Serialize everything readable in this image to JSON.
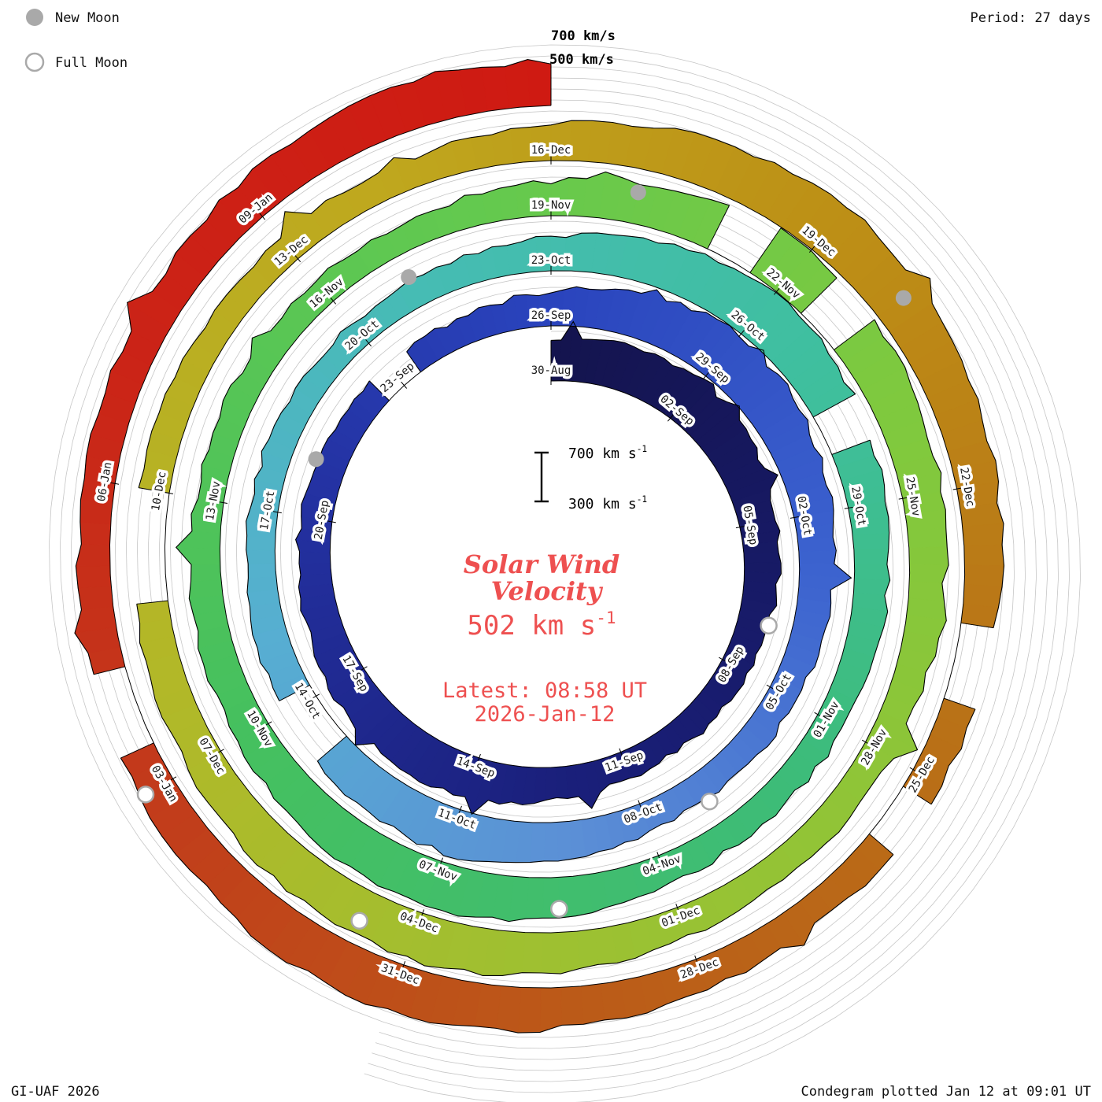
{
  "header": {
    "period_label": "Period: 27 days",
    "ring_label_outer": "700 km/s",
    "ring_label_inner": "500 km/s"
  },
  "legend": {
    "new_moon": "New Moon",
    "full_moon": "Full Moon"
  },
  "center": {
    "scale_top": "700 km s",
    "scale_top_exp": "-1",
    "scale_bottom": "300 km s",
    "scale_bottom_exp": "-1",
    "title_line1": "Solar Wind",
    "title_line2": "Velocity",
    "value": "502 km s",
    "value_exp": "-1",
    "latest_line1": "Latest: 08:58 UT",
    "latest_line2": "2026-Jan-12"
  },
  "footer": {
    "credit": "GI-UAF 2026",
    "plotted": "Condegram plotted Jan 12 at 09:01 UT"
  },
  "colors": {
    "accent_text": "#ee5050",
    "moon_gray": "#a9a9a9",
    "grid": "#c6c6c6",
    "edge": "#000000"
  },
  "chart_data": {
    "type": "area",
    "layout": "polar-spiral-condegram",
    "title": "Solar Wind Velocity",
    "period_days": 27,
    "start_label": "30-Aug",
    "end_label": "2026-Jan-12",
    "vmin": 300,
    "vmax": 700,
    "grid_levels": [
      300,
      400,
      500,
      600,
      700
    ],
    "current_value_kms": 502,
    "latest_time": "08:58 UT",
    "latest_date": "2026-Jan-12",
    "date_labels": [
      {
        "day": 0,
        "label": "30-Aug"
      },
      {
        "day": 3,
        "label": "02-Sep"
      },
      {
        "day": 6,
        "label": "05-Sep"
      },
      {
        "day": 9,
        "label": "08-Sep"
      },
      {
        "day": 12,
        "label": "11-Sep"
      },
      {
        "day": 15,
        "label": "14-Sep"
      },
      {
        "day": 18,
        "label": "17-Sep"
      },
      {
        "day": 21,
        "label": "20-Sep"
      },
      {
        "day": 24,
        "label": "23-Sep"
      },
      {
        "day": 27,
        "label": "26-Sep"
      },
      {
        "day": 30,
        "label": "29-Sep"
      },
      {
        "day": 33,
        "label": "02-Oct"
      },
      {
        "day": 36,
        "label": "05-Oct"
      },
      {
        "day": 39,
        "label": "08-Oct"
      },
      {
        "day": 42,
        "label": "11-Oct"
      },
      {
        "day": 45,
        "label": "14-Oct"
      },
      {
        "day": 48,
        "label": "17-Oct"
      },
      {
        "day": 51,
        "label": "20-Oct"
      },
      {
        "day": 54,
        "label": "23-Oct"
      },
      {
        "day": 57,
        "label": "26-Oct"
      },
      {
        "day": 60,
        "label": "29-Oct"
      },
      {
        "day": 63,
        "label": "01-Nov"
      },
      {
        "day": 66,
        "label": "04-Nov"
      },
      {
        "day": 69,
        "label": "07-Nov"
      },
      {
        "day": 72,
        "label": "10-Nov"
      },
      {
        "day": 75,
        "label": "13-Nov"
      },
      {
        "day": 78,
        "label": "16-Nov"
      },
      {
        "day": 81,
        "label": "19-Nov"
      },
      {
        "day": 84,
        "label": "22-Nov"
      },
      {
        "day": 87,
        "label": "25-Nov"
      },
      {
        "day": 90,
        "label": "28-Nov"
      },
      {
        "day": 93,
        "label": "01-Dec"
      },
      {
        "day": 96,
        "label": "04-Dec"
      },
      {
        "day": 99,
        "label": "07-Dec"
      },
      {
        "day": 102,
        "label": "10-Dec"
      },
      {
        "day": 105,
        "label": "13-Dec"
      },
      {
        "day": 108,
        "label": "16-Dec"
      },
      {
        "day": 111,
        "label": "19-Dec"
      },
      {
        "day": 114,
        "label": "22-Dec"
      },
      {
        "day": 117,
        "label": "25-Dec"
      },
      {
        "day": 120,
        "label": "28-Dec"
      },
      {
        "day": 123,
        "label": "31-Dec"
      },
      {
        "day": 126,
        "label": "03-Jan"
      },
      {
        "day": 129,
        "label": "06-Jan"
      },
      {
        "day": 132,
        "label": "09-Jan"
      }
    ],
    "daily_velocities": [
      500,
      540,
      580,
      600,
      570,
      530,
      490,
      460,
      440,
      420,
      400,
      390,
      400,
      430,
      470,
      520,
      560,
      540,
      500,
      470,
      450,
      430,
      410,
      395,
      385,
      390,
      420,
      460,
      520,
      590,
      630,
      600,
      550,
      500,
      465,
      440,
      420,
      405,
      395,
      420,
      470,
      530,
      570,
      550,
      505,
      470,
      445,
      425,
      408,
      395,
      388,
      380,
      392,
      418,
      455,
      515,
      585,
      625,
      595,
      548,
      498,
      462,
      438,
      418,
      402,
      392,
      425,
      478,
      538,
      578,
      558,
      512,
      476,
      450,
      428,
      410,
      398,
      390,
      382,
      394,
      420,
      465,
      528,
      598,
      638,
      608,
      558,
      508,
      470,
      445,
      424,
      408,
      398,
      432,
      486,
      546,
      586,
      566,
      520,
      482,
      456,
      434,
      416,
      402,
      394,
      386,
      398,
      426,
      475,
      538,
      608,
      648,
      618,
      568,
      518,
      478,
      452,
      430,
      414,
      404,
      440,
      494,
      554,
      594,
      574,
      528,
      490,
      462,
      440,
      424,
      452,
      478,
      520,
      560,
      590,
      502
    ],
    "gaps": [
      [
        23.6,
        24.4
      ],
      [
        44.2,
        45.3
      ],
      [
        58.6,
        59.2
      ],
      [
        83.0,
        83.6
      ],
      [
        84.4,
        85.0
      ],
      [
        100.8,
        101.9
      ],
      [
        115.4,
        116.1
      ],
      [
        117.2,
        117.8
      ],
      [
        126.4,
        127.2
      ]
    ],
    "new_moon_days": [
      22,
      52,
      82,
      112
    ],
    "full_moon_days": [
      8,
      38,
      67.4,
      96.6,
      126
    ],
    "colormap": [
      [
        0,
        "#14144e"
      ],
      [
        13,
        "#1a1f7a"
      ],
      [
        21,
        "#23309f"
      ],
      [
        27,
        "#2a44bd"
      ],
      [
        34,
        "#3c63cf"
      ],
      [
        40,
        "#5b8ed6"
      ],
      [
        46,
        "#57aed2"
      ],
      [
        52,
        "#46bcb4"
      ],
      [
        58,
        "#3fbf9f"
      ],
      [
        64,
        "#3dbc78"
      ],
      [
        72,
        "#45c05f"
      ],
      [
        80,
        "#63c94f"
      ],
      [
        86,
        "#7fc93e"
      ],
      [
        94,
        "#9cc132"
      ],
      [
        100,
        "#b2b828"
      ],
      [
        106,
        "#bfa81e"
      ],
      [
        111,
        "#bd9016"
      ],
      [
        116,
        "#b97317"
      ],
      [
        121,
        "#bb5c18"
      ],
      [
        126,
        "#c23b1b"
      ],
      [
        130,
        "#cb2417"
      ],
      [
        135,
        "#cf1a12"
      ]
    ]
  }
}
